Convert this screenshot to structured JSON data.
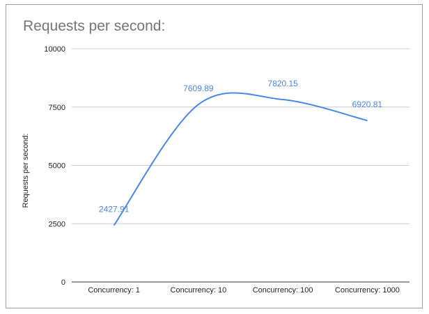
{
  "chart_data": {
    "type": "line",
    "title": "Requests per second:",
    "xlabel": "",
    "ylabel": "Requests per second:",
    "categories": [
      "Concurrency: 1",
      "Concurrency: 10",
      "Concurrency: 100",
      "Concurrency: 1000"
    ],
    "values": [
      2427.91,
      7609.89,
      7820.15,
      6920.81
    ],
    "data_labels": [
      "2427.91",
      "7609.89",
      "7820.15",
      "6920.81"
    ],
    "ylim": [
      0,
      10000
    ],
    "yticks": [
      "0",
      "2500",
      "5000",
      "7500",
      "10000"
    ],
    "smooth": true,
    "grid": true,
    "line_color": "#4a86e8"
  }
}
